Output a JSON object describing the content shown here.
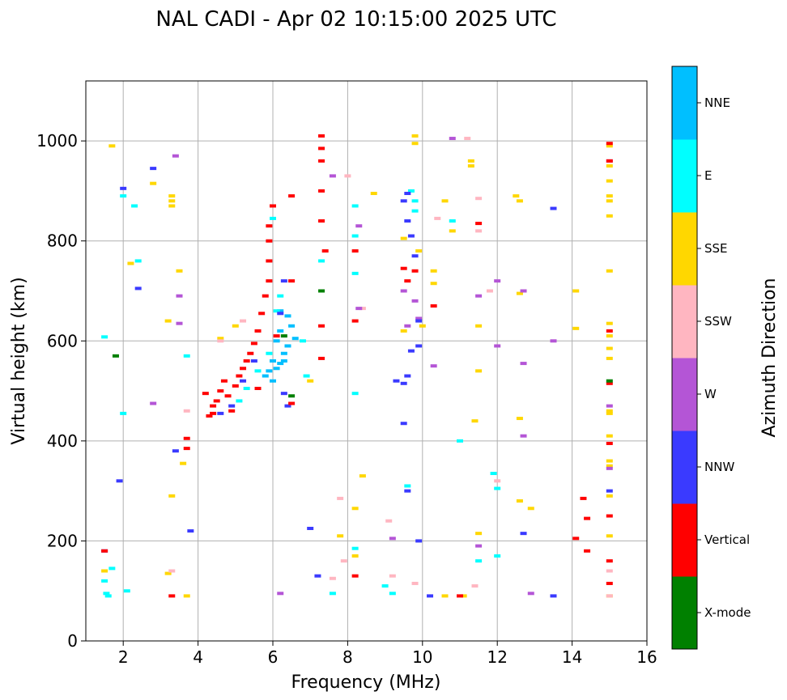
{
  "chart_data": {
    "type": "scatter",
    "title": "NAL CADI - Apr 02 10:15:00 2025 UTC",
    "xlabel": "Frequency (MHz)",
    "ylabel": "Virtual height (km)",
    "xlim": [
      1,
      16
    ],
    "ylim": [
      0,
      1120
    ],
    "xticks": [
      2,
      4,
      6,
      8,
      10,
      12,
      14,
      16
    ],
    "yticks": [
      0,
      200,
      400,
      600,
      800,
      1000
    ],
    "grid": true,
    "colorbar": {
      "label": "Azimuth Direction",
      "categories": [
        "X-mode",
        "Vertical",
        "NNW",
        "W",
        "SSW",
        "SSE",
        "E",
        "NNE"
      ],
      "colors": [
        "#008000",
        "#ff0000",
        "#3a3aff",
        "#b455d6",
        "#ffb6c1",
        "#ffd700",
        "#00ffff",
        "#00bfff"
      ]
    },
    "series": [
      {
        "name": "NNE",
        "points": [
          [
            5.9,
            540
          ],
          [
            6.0,
            560
          ],
          [
            6.1,
            545
          ],
          [
            6.2,
            555
          ],
          [
            6.3,
            560
          ],
          [
            6.1,
            600
          ],
          [
            6.2,
            620
          ],
          [
            6.4,
            590
          ],
          [
            6.5,
            630
          ],
          [
            6.6,
            605
          ],
          [
            6.3,
            575
          ],
          [
            6.0,
            520
          ],
          [
            5.8,
            530
          ],
          [
            6.2,
            660
          ],
          [
            6.4,
            650
          ]
        ]
      },
      {
        "name": "E",
        "points": [
          [
            1.5,
            120
          ],
          [
            1.55,
            95
          ],
          [
            1.6,
            90
          ],
          [
            1.5,
            608
          ],
          [
            2.0,
            890
          ],
          [
            2.3,
            870
          ],
          [
            1.7,
            145
          ],
          [
            2.1,
            100
          ],
          [
            2.0,
            455
          ],
          [
            2.4,
            760
          ],
          [
            3.7,
            570
          ],
          [
            5.1,
            480
          ],
          [
            5.3,
            505
          ],
          [
            5.6,
            540
          ],
          [
            5.9,
            575
          ],
          [
            6.0,
            845
          ],
          [
            6.1,
            660
          ],
          [
            6.2,
            690
          ],
          [
            6.8,
            600
          ],
          [
            6.9,
            530
          ],
          [
            7.3,
            760
          ],
          [
            7.6,
            95
          ],
          [
            8.2,
            870
          ],
          [
            8.2,
            810
          ],
          [
            8.2,
            735
          ],
          [
            8.2,
            495
          ],
          [
            8.2,
            185
          ],
          [
            9.0,
            110
          ],
          [
            9.2,
            95
          ],
          [
            9.7,
            900
          ],
          [
            9.8,
            880
          ],
          [
            9.8,
            860
          ],
          [
            9.6,
            310
          ],
          [
            10.8,
            840
          ],
          [
            11.0,
            400
          ],
          [
            11.5,
            160
          ],
          [
            12.0,
            170
          ],
          [
            12.0,
            305
          ],
          [
            11.9,
            335
          ]
        ]
      },
      {
        "name": "SSE",
        "points": [
          [
            1.5,
            140
          ],
          [
            1.7,
            990
          ],
          [
            2.2,
            755
          ],
          [
            2.8,
            915
          ],
          [
            3.2,
            640
          ],
          [
            3.3,
            890
          ],
          [
            3.3,
            880
          ],
          [
            3.3,
            870
          ],
          [
            3.3,
            290
          ],
          [
            3.5,
            740
          ],
          [
            3.6,
            355
          ],
          [
            3.7,
            90
          ],
          [
            3.2,
            135
          ],
          [
            4.6,
            605
          ],
          [
            5.0,
            630
          ],
          [
            7.0,
            520
          ],
          [
            7.8,
            210
          ],
          [
            8.2,
            265
          ],
          [
            8.2,
            170
          ],
          [
            8.4,
            330
          ],
          [
            8.7,
            895
          ],
          [
            9.5,
            620
          ],
          [
            9.5,
            805
          ],
          [
            9.8,
            1010
          ],
          [
            9.8,
            995
          ],
          [
            9.9,
            780
          ],
          [
            10.0,
            630
          ],
          [
            10.3,
            740
          ],
          [
            10.3,
            715
          ],
          [
            10.6,
            880
          ],
          [
            10.8,
            820
          ],
          [
            11.3,
            960
          ],
          [
            11.3,
            950
          ],
          [
            11.4,
            440
          ],
          [
            11.5,
            630
          ],
          [
            11.5,
            215
          ],
          [
            11.5,
            540
          ],
          [
            12.5,
            890
          ],
          [
            12.6,
            880
          ],
          [
            12.6,
            695
          ],
          [
            12.6,
            445
          ],
          [
            12.6,
            280
          ],
          [
            12.9,
            265
          ],
          [
            14.1,
            700
          ],
          [
            14.1,
            625
          ],
          [
            15.0,
            990
          ],
          [
            15.0,
            950
          ],
          [
            15.0,
            920
          ],
          [
            15.0,
            890
          ],
          [
            15.0,
            880
          ],
          [
            15.0,
            850
          ],
          [
            15.0,
            740
          ],
          [
            15.0,
            635
          ],
          [
            15.0,
            610
          ],
          [
            15.0,
            585
          ],
          [
            15.0,
            565
          ],
          [
            15.0,
            460
          ],
          [
            15.0,
            455
          ],
          [
            15.0,
            410
          ],
          [
            15.0,
            360
          ],
          [
            15.0,
            350
          ],
          [
            15.0,
            290
          ],
          [
            15.0,
            210
          ],
          [
            15.0,
            90
          ],
          [
            11.1,
            90
          ],
          [
            10.6,
            90
          ]
        ]
      },
      {
        "name": "SSW",
        "points": [
          [
            3.3,
            140
          ],
          [
            3.7,
            460
          ],
          [
            4.6,
            600
          ],
          [
            5.2,
            640
          ],
          [
            7.6,
            125
          ],
          [
            7.8,
            285
          ],
          [
            8.0,
            930
          ],
          [
            8.4,
            665
          ],
          [
            9.1,
            240
          ],
          [
            9.2,
            130
          ],
          [
            9.8,
            115
          ],
          [
            10.4,
            845
          ],
          [
            11.2,
            1005
          ],
          [
            11.5,
            885
          ],
          [
            11.5,
            820
          ],
          [
            11.4,
            110
          ],
          [
            11.8,
            700
          ],
          [
            12.0,
            320
          ],
          [
            15.0,
            140
          ],
          [
            15.0,
            90
          ],
          [
            7.9,
            160
          ]
        ]
      },
      {
        "name": "W",
        "points": [
          [
            3.4,
            970
          ],
          [
            2.8,
            475
          ],
          [
            3.5,
            690
          ],
          [
            3.5,
            635
          ],
          [
            6.2,
            95
          ],
          [
            7.6,
            930
          ],
          [
            8.3,
            665
          ],
          [
            8.3,
            830
          ],
          [
            9.6,
            630
          ],
          [
            9.5,
            700
          ],
          [
            9.8,
            680
          ],
          [
            9.9,
            645
          ],
          [
            10.3,
            550
          ],
          [
            10.8,
            1005
          ],
          [
            11.5,
            690
          ],
          [
            12.0,
            720
          ],
          [
            12.0,
            590
          ],
          [
            12.7,
            700
          ],
          [
            12.7,
            555
          ],
          [
            12.7,
            410
          ],
          [
            12.9,
            95
          ],
          [
            13.5,
            600
          ],
          [
            9.2,
            205
          ],
          [
            15.0,
            960
          ],
          [
            15.0,
            470
          ],
          [
            15.0,
            345
          ],
          [
            11.5,
            190
          ]
        ]
      },
      {
        "name": "NNW",
        "points": [
          [
            1.5,
            180
          ],
          [
            2.8,
            945
          ],
          [
            2.0,
            905
          ],
          [
            2.4,
            705
          ],
          [
            1.9,
            320
          ],
          [
            3.4,
            380
          ],
          [
            3.8,
            220
          ],
          [
            4.6,
            455
          ],
          [
            4.9,
            470
          ],
          [
            5.2,
            520
          ],
          [
            5.5,
            560
          ],
          [
            6.2,
            655
          ],
          [
            6.3,
            720
          ],
          [
            6.3,
            495
          ],
          [
            6.4,
            470
          ],
          [
            7.0,
            225
          ],
          [
            7.2,
            130
          ],
          [
            9.3,
            520
          ],
          [
            9.5,
            515
          ],
          [
            9.6,
            895
          ],
          [
            9.6,
            840
          ],
          [
            9.7,
            810
          ],
          [
            9.8,
            770
          ],
          [
            9.9,
            640
          ],
          [
            9.9,
            590
          ],
          [
            9.7,
            580
          ],
          [
            9.6,
            530
          ],
          [
            9.5,
            435
          ],
          [
            9.5,
            880
          ],
          [
            9.9,
            200
          ],
          [
            9.6,
            300
          ],
          [
            10.2,
            90
          ],
          [
            12.7,
            215
          ],
          [
            13.5,
            865
          ],
          [
            13.5,
            90
          ],
          [
            15.0,
            300
          ]
        ]
      },
      {
        "name": "Vertical",
        "points": [
          [
            1.5,
            180
          ],
          [
            3.3,
            90
          ],
          [
            3.7,
            385
          ],
          [
            3.7,
            405
          ],
          [
            4.3,
            450
          ],
          [
            4.4,
            470
          ],
          [
            4.5,
            480
          ],
          [
            4.6,
            500
          ],
          [
            4.7,
            520
          ],
          [
            4.8,
            490
          ],
          [
            4.9,
            460
          ],
          [
            5.0,
            510
          ],
          [
            5.1,
            530
          ],
          [
            5.2,
            545
          ],
          [
            5.3,
            560
          ],
          [
            5.4,
            575
          ],
          [
            5.5,
            595
          ],
          [
            5.6,
            620
          ],
          [
            5.7,
            655
          ],
          [
            5.8,
            690
          ],
          [
            5.9,
            720
          ],
          [
            5.9,
            760
          ],
          [
            5.9,
            800
          ],
          [
            5.9,
            830
          ],
          [
            6.0,
            870
          ],
          [
            4.2,
            495
          ],
          [
            4.4,
            455
          ],
          [
            5.6,
            505
          ],
          [
            6.1,
            610
          ],
          [
            6.5,
            720
          ],
          [
            6.5,
            475
          ],
          [
            6.5,
            890
          ],
          [
            7.3,
            1010
          ],
          [
            7.3,
            985
          ],
          [
            7.3,
            960
          ],
          [
            7.3,
            900
          ],
          [
            7.3,
            840
          ],
          [
            7.3,
            630
          ],
          [
            7.3,
            565
          ],
          [
            7.4,
            780
          ],
          [
            8.2,
            780
          ],
          [
            8.2,
            640
          ],
          [
            8.2,
            130
          ],
          [
            9.5,
            745
          ],
          [
            9.6,
            720
          ],
          [
            9.8,
            740
          ],
          [
            10.3,
            670
          ],
          [
            11.5,
            835
          ],
          [
            14.3,
            285
          ],
          [
            14.4,
            245
          ],
          [
            14.4,
            180
          ],
          [
            14.1,
            205
          ],
          [
            15.0,
            995
          ],
          [
            15.0,
            960
          ],
          [
            15.0,
            620
          ],
          [
            15.0,
            515
          ],
          [
            15.0,
            395
          ],
          [
            15.0,
            250
          ],
          [
            15.0,
            160
          ],
          [
            15.0,
            115
          ],
          [
            11.0,
            90
          ]
        ]
      },
      {
        "name": "X-mode",
        "points": [
          [
            1.8,
            570
          ],
          [
            7.3,
            700
          ],
          [
            6.3,
            610
          ],
          [
            15.0,
            520
          ],
          [
            6.5,
            490
          ]
        ]
      }
    ]
  }
}
